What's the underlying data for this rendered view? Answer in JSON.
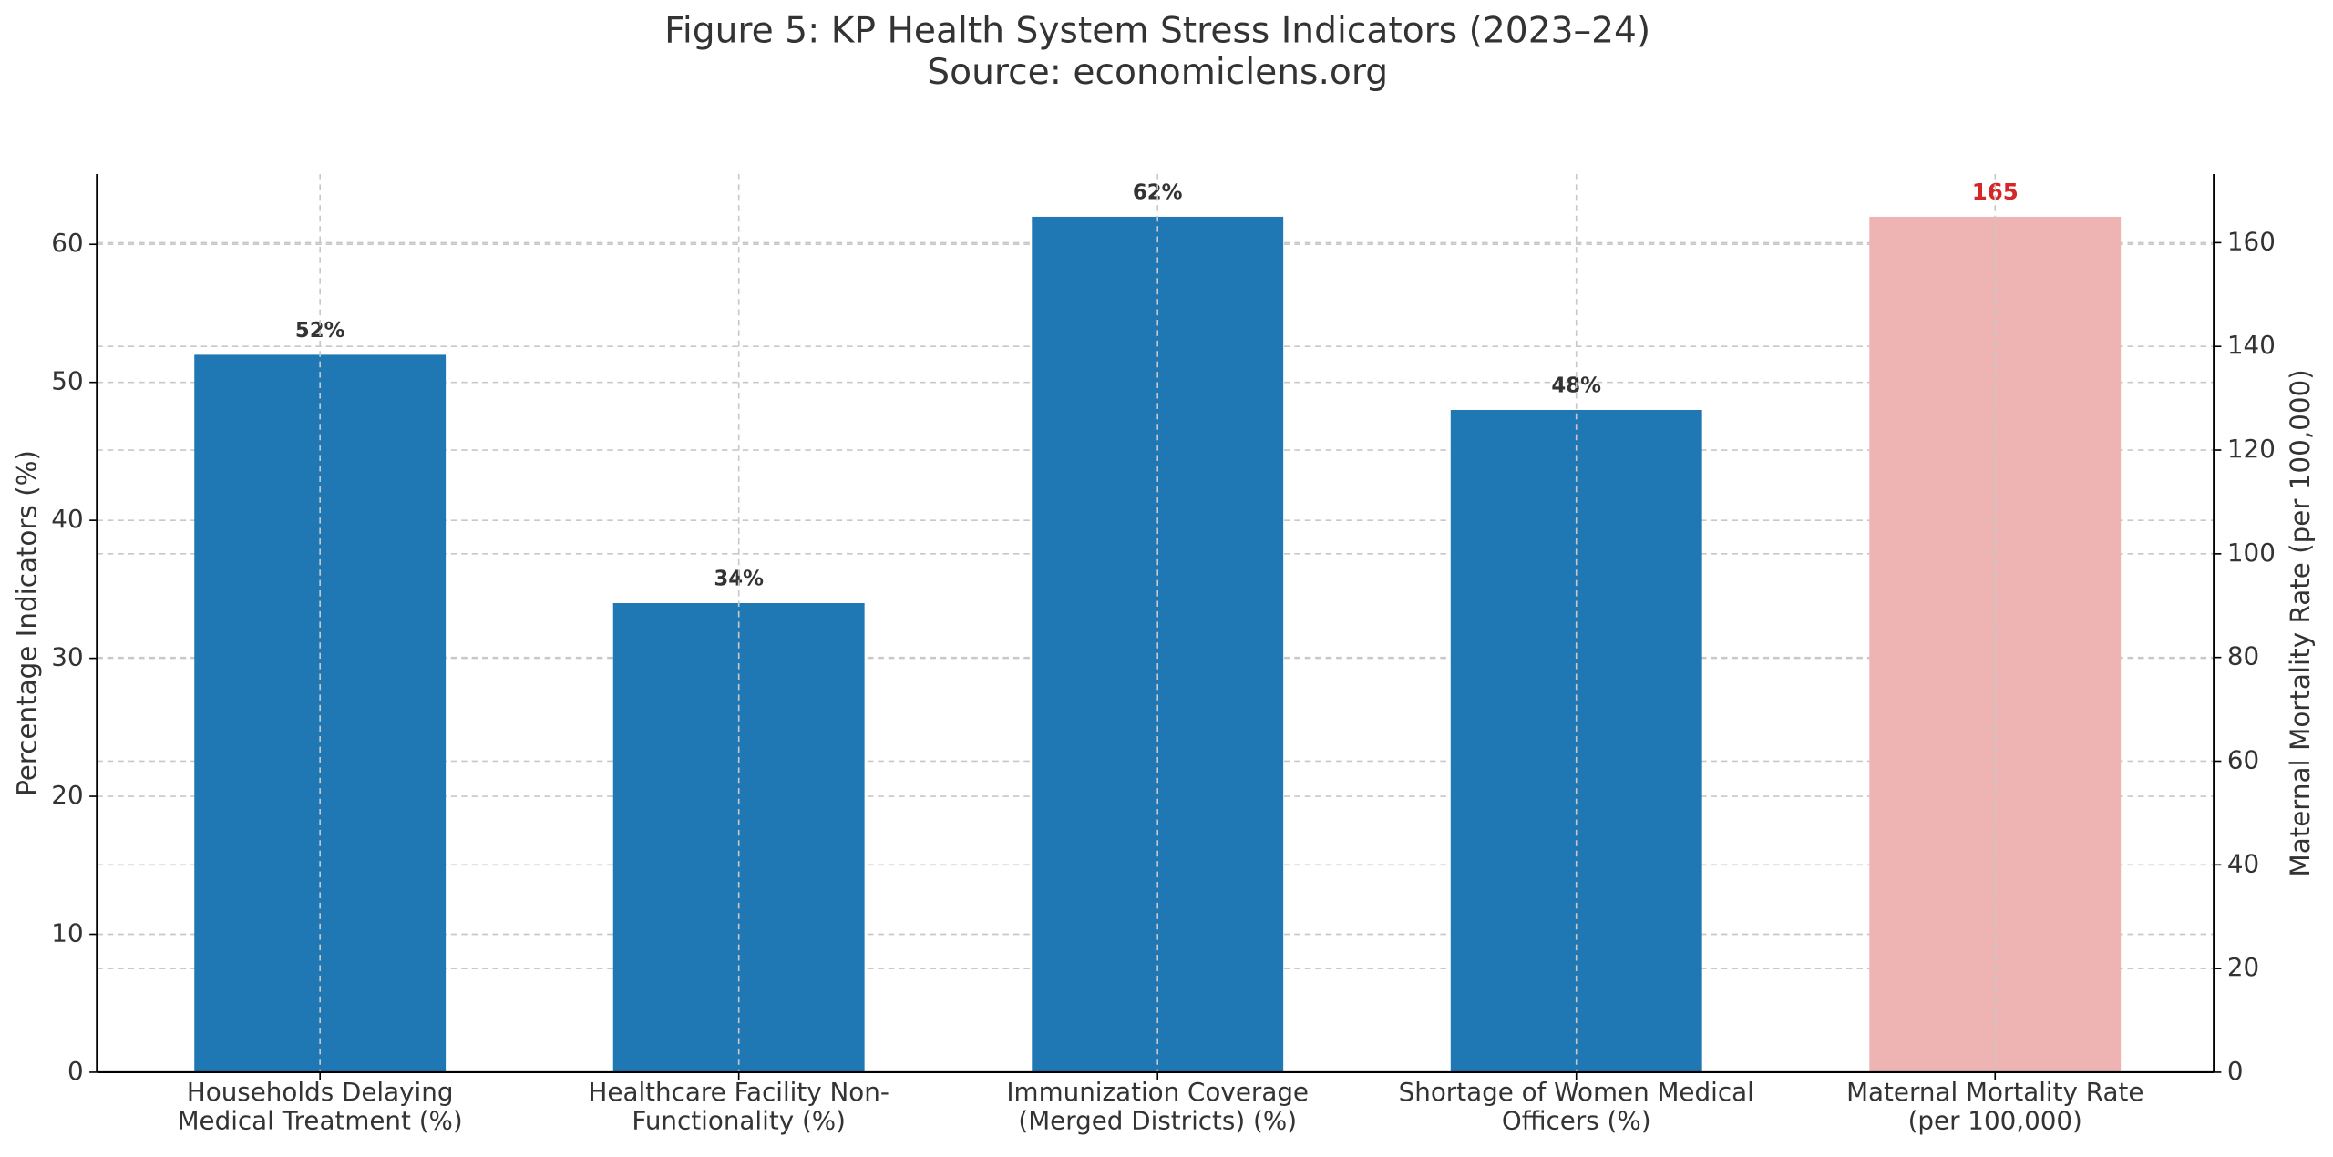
{
  "chart_data": {
    "type": "bar",
    "title": "Figure 5: KP Health System Stress Indicators (2023–24)",
    "subtitle": "Source: economiclens.org",
    "categories": [
      "Households Delaying\nMedical Treatment (%)",
      "Healthcare Facility Non-\nFunctionality (%)",
      "Immunization Coverage\n(Merged Districts) (%)",
      "Shortage of Women Medical\nOfficers (%)",
      "Maternal Mortality Rate\n(per 100,000)"
    ],
    "ylabel": "Percentage Indicators (%)",
    "y2label": "Maternal Mortality Rate (per 100,000)",
    "ylim": [
      0,
      65.1
    ],
    "yticks": [
      0,
      10,
      20,
      30,
      40,
      50,
      60
    ],
    "y2lim": [
      0,
      173.25
    ],
    "y2ticks": [
      0,
      20,
      40,
      60,
      80,
      100,
      120,
      140,
      160
    ],
    "grid": true,
    "series": [
      {
        "color": "#1f77b4",
        "label_color": "#333333",
        "axis": "y",
        "values": [
          52,
          34,
          62,
          48,
          null
        ],
        "value_labels": [
          "52%",
          "34%",
          "62%",
          "48%",
          null
        ]
      },
      {
        "color": "#eeb3b3",
        "label_color": "#d62728",
        "axis": "y2",
        "values": [
          null,
          null,
          null,
          null,
          165
        ]
      }
    ]
  }
}
